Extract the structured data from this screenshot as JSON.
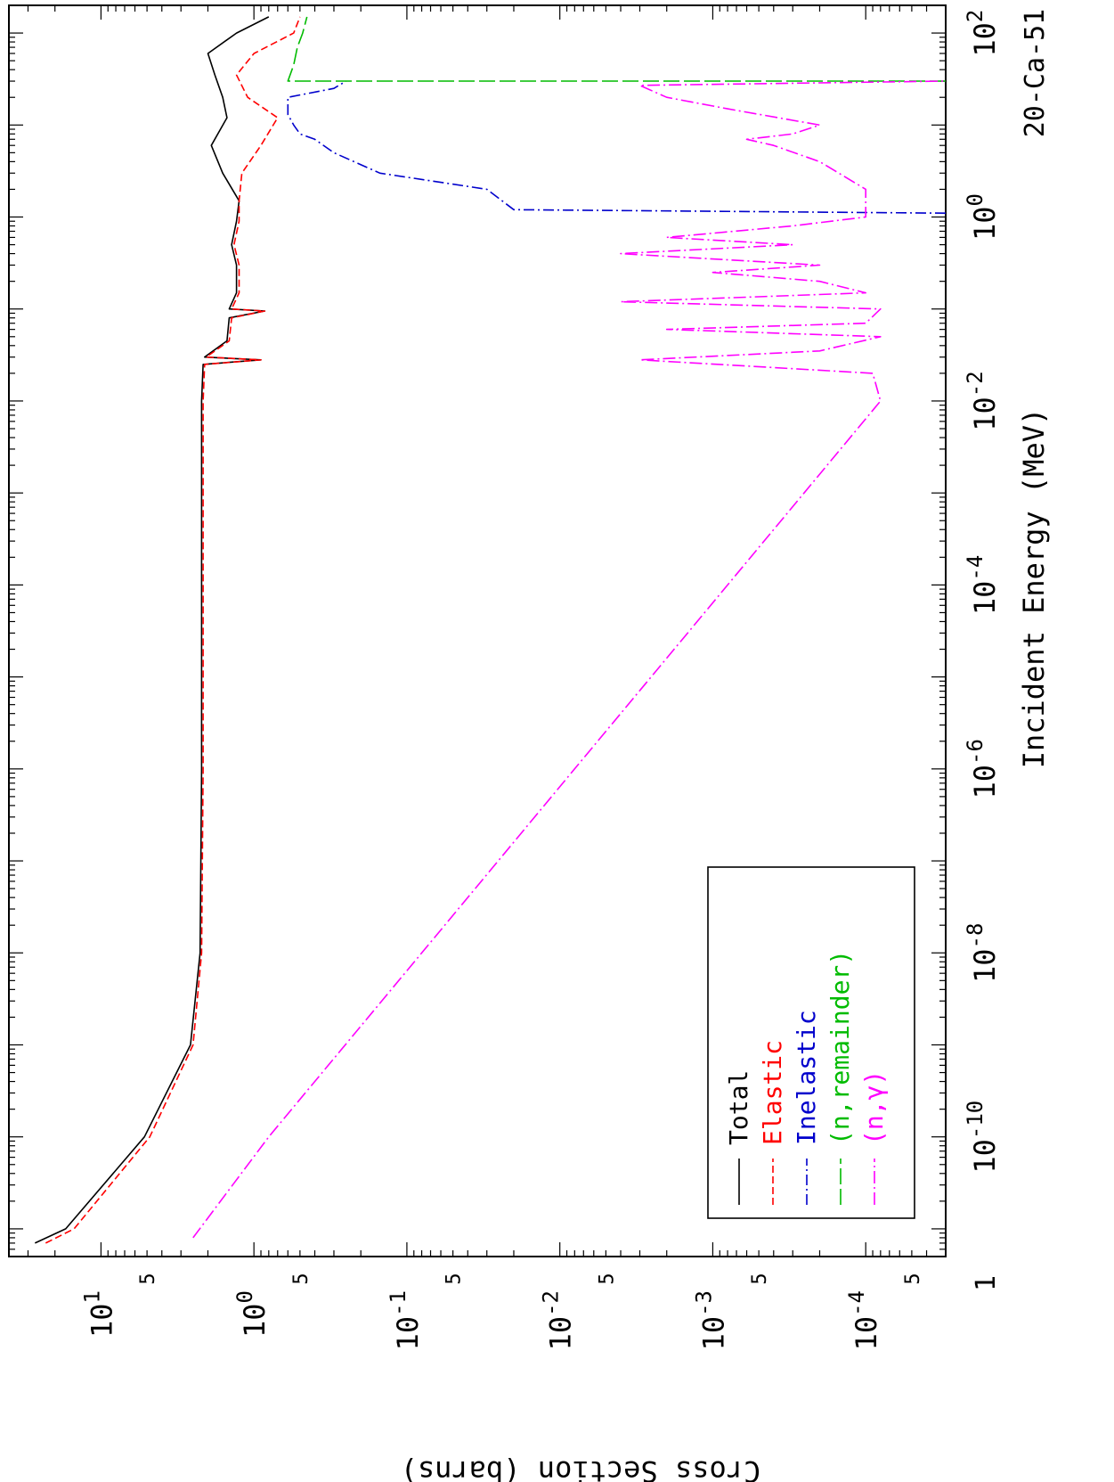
{
  "chart_data": {
    "type": "line",
    "title": "",
    "material_label": "20-Ca-51",
    "xlabel": "Incident Energy (MeV)",
    "ylabel": "Cross Section (barns)",
    "x_scale": "log",
    "y_scale": "log",
    "xlim": [
      5e-12,
      200
    ],
    "ylim": [
      3e-05,
      40
    ],
    "x_tick_labels": [
      {
        "value": 1e-10,
        "base": "10",
        "exp": "-10"
      },
      {
        "value": 1e-08,
        "base": "10",
        "exp": "-8"
      },
      {
        "value": 1e-06,
        "base": "10",
        "exp": "-6"
      },
      {
        "value": 0.0001,
        "base": "10",
        "exp": "-4"
      },
      {
        "value": 0.01,
        "base": "10",
        "exp": "-2"
      },
      {
        "value": 1,
        "base": "10",
        "exp": "0"
      },
      {
        "value": 100,
        "base": "10",
        "exp": "2"
      }
    ],
    "y_tick_labels": [
      {
        "value": 10,
        "base": "10",
        "exp": "1"
      },
      {
        "value": 1,
        "base": "10",
        "exp": "0"
      },
      {
        "value": 0.1,
        "base": "10",
        "exp": "-1"
      },
      {
        "value": 0.01,
        "base": "10",
        "exp": "-2"
      },
      {
        "value": 0.001,
        "base": "10",
        "exp": "-3"
      },
      {
        "value": 0.0001,
        "base": "10",
        "exp": "-4"
      }
    ],
    "y_minor_labels": [
      {
        "value": 5,
        "label": "5"
      },
      {
        "value": 0.5,
        "label": "5"
      },
      {
        "value": 0.05,
        "label": "5"
      },
      {
        "value": 0.005,
        "label": "5"
      },
      {
        "value": 0.0005,
        "label": "5"
      },
      {
        "value": 5e-05,
        "label": "5"
      }
    ],
    "corner_label": "1",
    "grid": false,
    "legend_position": "bottom-left",
    "series": [
      {
        "name": "Total",
        "color": "#000000",
        "dash": "solid",
        "points": [
          [
            7e-12,
            27
          ],
          [
            1e-11,
            17
          ],
          [
            1e-10,
            5.2
          ],
          [
            1e-09,
            2.6
          ],
          [
            1e-08,
            2.25
          ],
          [
            1e-06,
            2.2
          ],
          [
            0.001,
            2.2
          ],
          [
            0.01,
            2.2
          ],
          [
            0.025,
            2.15
          ],
          [
            0.028,
            0.9
          ],
          [
            0.03,
            2.1
          ],
          [
            0.045,
            1.5
          ],
          [
            0.08,
            1.45
          ],
          [
            0.095,
            0.85
          ],
          [
            0.1,
            1.45
          ],
          [
            0.15,
            1.3
          ],
          [
            0.3,
            1.3
          ],
          [
            0.5,
            1.4
          ],
          [
            0.9,
            1.3
          ],
          [
            1.5,
            1.25
          ],
          [
            3,
            1.6
          ],
          [
            6,
            1.9
          ],
          [
            12,
            1.5
          ],
          [
            20,
            1.6
          ],
          [
            35,
            1.8
          ],
          [
            60,
            2.0
          ],
          [
            100,
            1.3
          ],
          [
            150,
            0.8
          ]
        ]
      },
      {
        "name": "Elastic",
        "color": "#ff0000",
        "dash": "8,4",
        "points": [
          [
            7e-12,
            23
          ],
          [
            1e-11,
            15
          ],
          [
            1e-10,
            4.8
          ],
          [
            1e-09,
            2.5
          ],
          [
            1e-08,
            2.2
          ],
          [
            1e-06,
            2.15
          ],
          [
            0.001,
            2.15
          ],
          [
            0.01,
            2.15
          ],
          [
            0.025,
            2.1
          ],
          [
            0.028,
            0.9
          ],
          [
            0.03,
            2.05
          ],
          [
            0.045,
            1.45
          ],
          [
            0.08,
            1.4
          ],
          [
            0.095,
            0.85
          ],
          [
            0.1,
            1.4
          ],
          [
            0.15,
            1.25
          ],
          [
            0.3,
            1.25
          ],
          [
            0.5,
            1.35
          ],
          [
            0.9,
            1.25
          ],
          [
            1.5,
            1.25
          ],
          [
            3,
            1.2
          ],
          [
            6,
            0.9
          ],
          [
            12,
            0.7
          ],
          [
            20,
            1.1
          ],
          [
            35,
            1.3
          ],
          [
            60,
            1.0
          ],
          [
            100,
            0.55
          ],
          [
            150,
            0.5
          ]
        ]
      },
      {
        "name": "Inelastic",
        "color": "#0000cc",
        "dash": "12,4,2,4",
        "points": [
          [
            1.1,
            3e-05
          ],
          [
            1.2,
            0.02
          ],
          [
            2,
            0.03
          ],
          [
            3,
            0.15
          ],
          [
            5,
            0.3
          ],
          [
            7,
            0.4
          ],
          [
            8,
            0.5
          ],
          [
            10,
            0.55
          ],
          [
            13,
            0.6
          ],
          [
            17,
            0.6
          ],
          [
            20,
            0.6
          ],
          [
            25,
            0.3
          ],
          [
            30,
            0.25
          ]
        ]
      },
      {
        "name": "(n,remainder)",
        "color": "#00bb00",
        "dash": "18,5",
        "points": [
          [
            30,
            3e-05
          ],
          [
            30,
            0.6
          ],
          [
            45,
            0.55
          ],
          [
            70,
            0.52
          ],
          [
            100,
            0.48
          ],
          [
            150,
            0.45
          ]
        ]
      },
      {
        "name": "(n,γ)",
        "color": "#ff00ff",
        "dash": "14,4,2,4",
        "points": [
          [
            8e-12,
            2.5
          ],
          [
            1e-10,
            0.8
          ],
          [
            1e-08,
            0.08
          ],
          [
            1e-06,
            0.008
          ],
          [
            0.0001,
            0.0008
          ],
          [
            0.01,
            8e-05
          ],
          [
            0.02,
            9e-05
          ],
          [
            0.028,
            0.003
          ],
          [
            0.035,
            0.0002
          ],
          [
            0.05,
            8e-05
          ],
          [
            0.06,
            0.002
          ],
          [
            0.07,
            0.0001
          ],
          [
            0.1,
            8e-05
          ],
          [
            0.12,
            0.004
          ],
          [
            0.15,
            0.0001
          ],
          [
            0.2,
            0.0002
          ],
          [
            0.25,
            0.001
          ],
          [
            0.3,
            0.0002
          ],
          [
            0.4,
            0.004
          ],
          [
            0.5,
            0.0003
          ],
          [
            0.6,
            0.002
          ],
          [
            0.8,
            0.0003
          ],
          [
            1.0,
            0.0001
          ],
          [
            1.2,
            0.0001
          ],
          [
            2,
            0.0001
          ],
          [
            4,
            0.0002
          ],
          [
            6,
            0.0004
          ],
          [
            7,
            0.0006
          ],
          [
            8,
            0.0003
          ],
          [
            10,
            0.0002
          ],
          [
            15,
            0.0008
          ],
          [
            20,
            0.002
          ],
          [
            27,
            0.003
          ],
          [
            30,
            3e-05
          ]
        ]
      }
    ]
  }
}
